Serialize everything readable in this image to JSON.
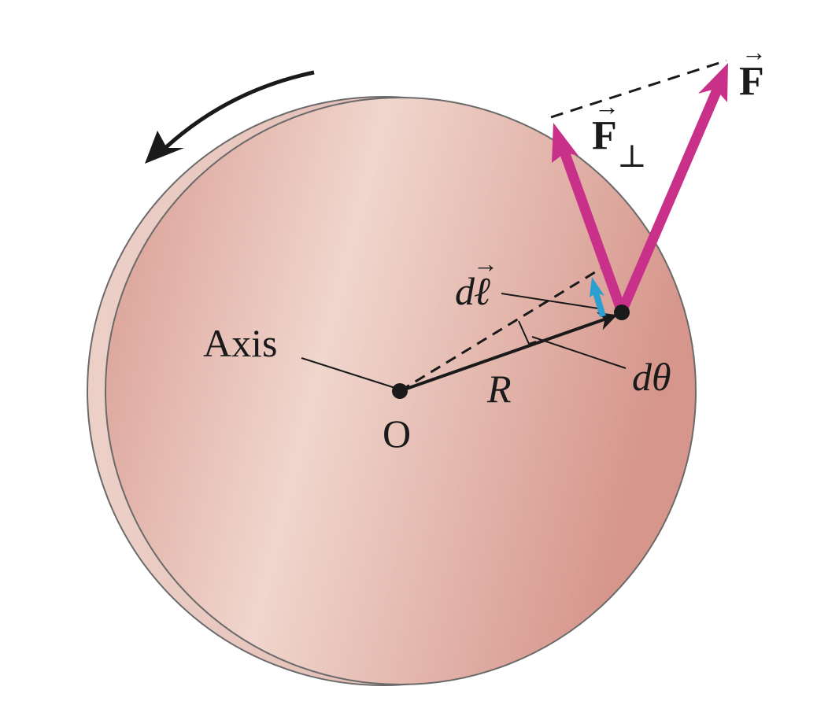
{
  "labels": {
    "axis": "Axis",
    "origin": "O",
    "radius": "R",
    "d_theta_d": "d",
    "d_theta_theta": "θ",
    "dl_d": "d",
    "dl_l": "ℓ",
    "force": "F",
    "force_perp": "F",
    "perp_symbol": "⊥",
    "vector_arrow": "→"
  },
  "colors": {
    "force_arrow": "#c8308a",
    "displacement_arrow": "#2a9fd0",
    "disk_light": "#f0d8d0",
    "disk_mid": "#e2aea2",
    "disk_dark": "#d4928a",
    "outline": "#6a6a6a",
    "ink": "#1a1a1a"
  }
}
